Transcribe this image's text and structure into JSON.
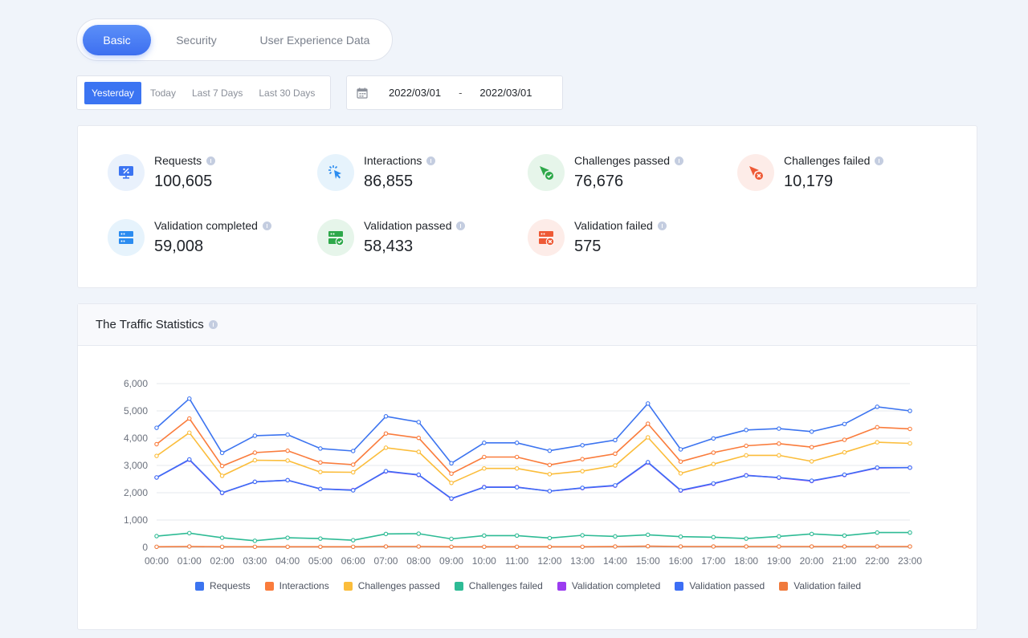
{
  "tabs": [
    {
      "label": "Basic",
      "active": true
    },
    {
      "label": "Security",
      "active": false
    },
    {
      "label": "User Experience Data",
      "active": false
    }
  ],
  "ranges": [
    {
      "label": "Yesterday",
      "active": true
    },
    {
      "label": "Today",
      "active": false
    },
    {
      "label": "Last 7 Days",
      "active": false
    },
    {
      "label": "Last 30 Days",
      "active": false
    }
  ],
  "date_range": {
    "start": "2022/03/01",
    "separator": "-",
    "end": "2022/03/01",
    "icon": "calendar-icon"
  },
  "stats": [
    {
      "label": "Requests",
      "value": "100,605",
      "icon": "monitor-percent-icon",
      "tone": "blue"
    },
    {
      "label": "Interactions",
      "value": "86,855",
      "icon": "click-cursor-icon",
      "tone": "lblue"
    },
    {
      "label": "Challenges passed",
      "value": "76,676",
      "icon": "cursor-check-icon",
      "tone": "green"
    },
    {
      "label": "Challenges failed",
      "value": "10,179",
      "icon": "cursor-cross-icon",
      "tone": "red"
    },
    {
      "label": "Validation completed",
      "value": "59,008",
      "icon": "server-icon",
      "tone": "lblue"
    },
    {
      "label": "Validation passed",
      "value": "58,433",
      "icon": "server-check-icon",
      "tone": "green"
    },
    {
      "label": "Validation failed",
      "value": "575",
      "icon": "server-cross-icon",
      "tone": "red"
    }
  ],
  "traffic": {
    "title": "The Traffic Statistics"
  },
  "chart_data": {
    "type": "line",
    "title": "The Traffic Statistics",
    "xlabel": "",
    "ylabel": "",
    "ylim": [
      0,
      6000
    ],
    "yticks": [
      0,
      1000,
      2000,
      3000,
      4000,
      5000,
      6000
    ],
    "ytick_labels": [
      "0",
      "1,000",
      "2,000",
      "3,000",
      "4,000",
      "5,000",
      "6,000"
    ],
    "grid": true,
    "legend_position": "bottom",
    "x": [
      "00:00",
      "01:00",
      "02:00",
      "03:00",
      "04:00",
      "05:00",
      "06:00",
      "07:00",
      "08:00",
      "09:00",
      "10:00",
      "11:00",
      "12:00",
      "13:00",
      "14:00",
      "15:00",
      "16:00",
      "17:00",
      "18:00",
      "19:00",
      "20:00",
      "21:00",
      "22:00",
      "23:00"
    ],
    "series": [
      {
        "name": "Requests",
        "color": "#3c74f0",
        "values": [
          4380,
          5450,
          3460,
          4090,
          4130,
          3620,
          3530,
          4800,
          4590,
          3080,
          3830,
          3830,
          3540,
          3740,
          3930,
          5270,
          3590,
          3990,
          4300,
          4350,
          4240,
          4520,
          5150,
          5000
        ]
      },
      {
        "name": "Interactions",
        "color": "#fa7c3c",
        "values": [
          3780,
          4720,
          2980,
          3470,
          3540,
          3110,
          3030,
          4170,
          4010,
          2700,
          3310,
          3310,
          3020,
          3230,
          3430,
          4530,
          3140,
          3470,
          3720,
          3800,
          3670,
          3940,
          4400,
          4340
        ]
      },
      {
        "name": "Challenges passed",
        "color": "#fbbd3b",
        "values": [
          3350,
          4200,
          2620,
          3190,
          3180,
          2760,
          2750,
          3650,
          3500,
          2360,
          2890,
          2890,
          2680,
          2790,
          3000,
          4030,
          2710,
          3050,
          3370,
          3370,
          3150,
          3480,
          3850,
          3810
        ]
      },
      {
        "name": "Challenges failed",
        "color": "#2ebb95",
        "values": [
          410,
          520,
          350,
          240,
          350,
          320,
          260,
          490,
          500,
          310,
          430,
          430,
          340,
          440,
          400,
          460,
          390,
          370,
          320,
          400,
          490,
          430,
          540,
          540
        ]
      },
      {
        "name": "Validation completed",
        "color": "#9b3cf0",
        "values": [
          2560,
          3210,
          1990,
          2400,
          2460,
          2140,
          2100,
          2780,
          2650,
          1780,
          2210,
          2210,
          2060,
          2170,
          2260,
          3110,
          2080,
          2330,
          2640,
          2550,
          2430,
          2650,
          2910,
          2920
        ]
      },
      {
        "name": "Validation passed",
        "color": "#3c6ef5",
        "values": [
          2560,
          3220,
          2000,
          2400,
          2460,
          2140,
          2090,
          2790,
          2660,
          1790,
          2200,
          2200,
          2060,
          2180,
          2270,
          3120,
          2090,
          2340,
          2630,
          2560,
          2440,
          2660,
          2920,
          2920
        ]
      },
      {
        "name": "Validation failed",
        "color": "#f07a3c",
        "values": [
          20,
          30,
          20,
          20,
          20,
          20,
          20,
          30,
          30,
          20,
          20,
          20,
          20,
          20,
          30,
          40,
          30,
          30,
          30,
          30,
          30,
          30,
          30,
          30
        ]
      }
    ]
  }
}
